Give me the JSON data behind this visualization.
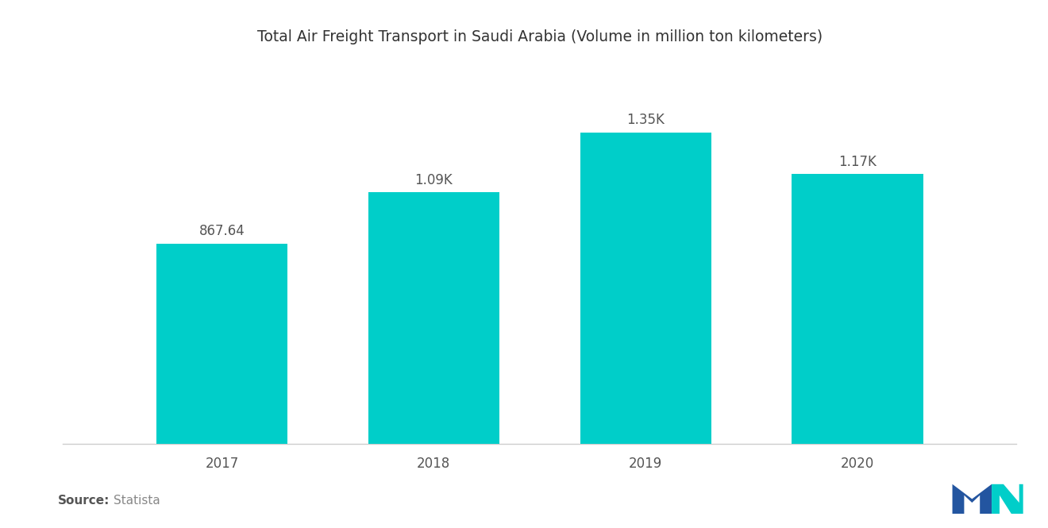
{
  "title": "Total Air Freight Transport in Saudi Arabia (Volume in million ton kilometers)",
  "categories": [
    "2017",
    "2018",
    "2019",
    "2020"
  ],
  "values": [
    867.64,
    1090,
    1350,
    1170
  ],
  "labels": [
    "867.64",
    "1.09K",
    "1.35K",
    "1.17K"
  ],
  "bar_color": "#00CEC9",
  "background_color": "#FFFFFF",
  "source_bold": "Source:",
  "source_text": "  Statista",
  "title_fontsize": 13.5,
  "label_fontsize": 12,
  "tick_fontsize": 12,
  "source_fontsize": 11,
  "bar_width": 0.62,
  "ylim": [
    0,
    1650
  ],
  "spine_color": "#CCCCCC",
  "text_color": "#555555"
}
